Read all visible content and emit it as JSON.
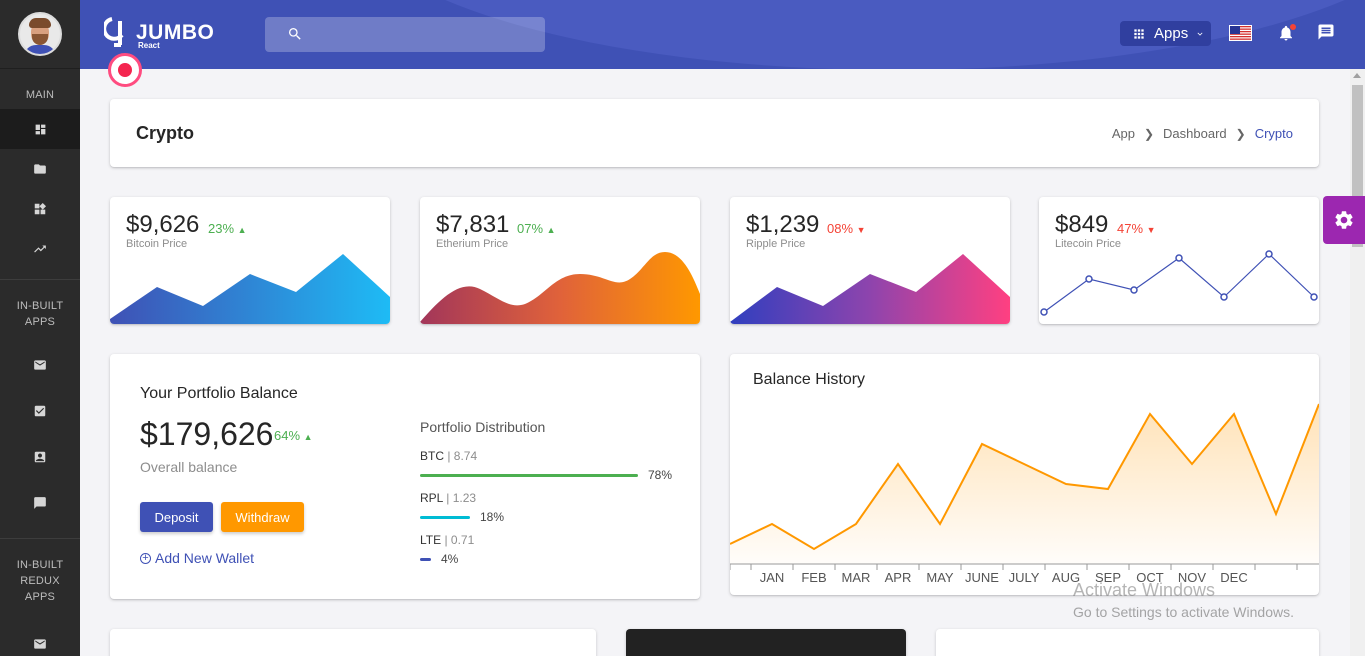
{
  "sidebar": {
    "sections": [
      {
        "label": "MAIN"
      },
      {
        "label": "IN-BUILT\nAPPS"
      },
      {
        "label": "IN-BUILT\nREDUX\nAPPS"
      }
    ],
    "icons": [
      "dashboard-icon",
      "folder-icon",
      "widgets-icon",
      "trending-up-icon",
      "mail-icon",
      "checkbox-icon",
      "contact-icon",
      "chat-icon",
      "mail-icon"
    ]
  },
  "header": {
    "logo_text": "JUMBO",
    "logo_sub": "React",
    "search_placeholder": "",
    "apps_label": "Apps",
    "accent": "#3f51b5"
  },
  "page": {
    "title": "Crypto",
    "breadcrumb": [
      "App",
      "Dashboard",
      "Crypto"
    ]
  },
  "stats": [
    {
      "price": "$9,626",
      "pct": "23%",
      "trend": "up",
      "label": "Bitcoin Price"
    },
    {
      "price": "$7,831",
      "pct": "07%",
      "trend": "up",
      "label": "Etherium Price"
    },
    {
      "price": "$1,239",
      "pct": "08%",
      "trend": "down",
      "label": "Ripple Price"
    },
    {
      "price": "$849",
      "pct": "47%",
      "trend": "down",
      "label": "Litecoin Price"
    }
  ],
  "portfolio": {
    "title": "Your Portfolio Balance",
    "amount": "$179,626",
    "pct": "64%",
    "sub": "Overall balance",
    "deposit_label": "Deposit",
    "withdraw_label": "Withdraw",
    "add_wallet_label": "Add New Wallet",
    "distribution_title": "Portfolio Distribution",
    "distribution": [
      {
        "coin": "BTC",
        "value": "8.74",
        "percent": "78%",
        "fraction": 0.78,
        "color": "#4caf50"
      },
      {
        "coin": "RPL",
        "value": "1.23",
        "percent": "18%",
        "fraction": 0.18,
        "color": "#00bcd4"
      },
      {
        "coin": "LTE",
        "value": "0.71",
        "percent": "4%",
        "fraction": 0.04,
        "color": "#3f51b5"
      }
    ]
  },
  "balance_history": {
    "title": "Balance History",
    "months": [
      "JAN",
      "FEB",
      "MAR",
      "APR",
      "MAY",
      "JUNE",
      "JULY",
      "AUG",
      "SEP",
      "OCT",
      "NOV",
      "DEC"
    ]
  },
  "watermark": {
    "line1": "Activate Windows",
    "line2": "Go to Settings to activate Windows."
  }
}
